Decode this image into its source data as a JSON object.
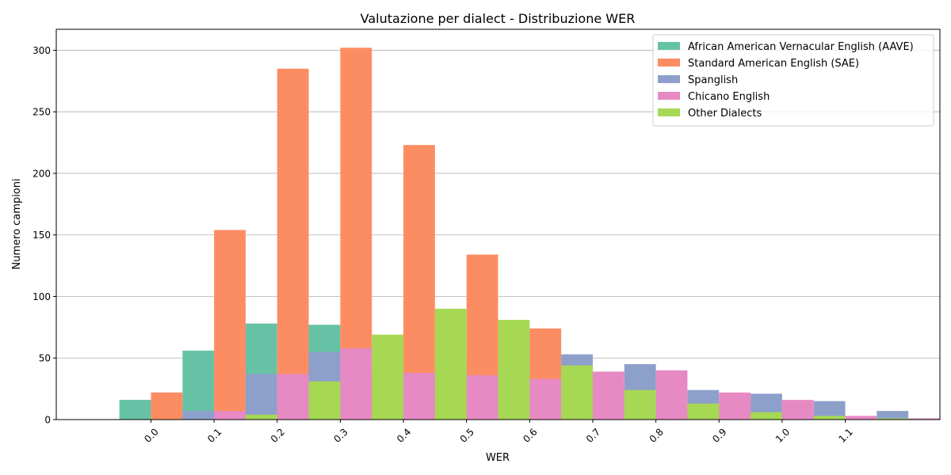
{
  "chart_data": {
    "type": "bar",
    "title": "Valutazione per dialect - Distribuzione WER",
    "xlabel": "WER",
    "ylabel": "Numero campioni",
    "xticks": [
      "0.0",
      "0.1",
      "0.2",
      "0.3",
      "0.4",
      "0.5",
      "0.6",
      "0.7",
      "0.8",
      "0.9",
      "1.0",
      "1.1"
    ],
    "xlim": [
      -0.15,
      1.25
    ],
    "ylim": [
      0,
      317
    ],
    "yticks": [
      0,
      50,
      100,
      150,
      200,
      250,
      300
    ],
    "grid": "y",
    "legend_position": "top-right",
    "bin_starts": [
      -0.05,
      0.05,
      0.15,
      0.25,
      0.35,
      0.45,
      0.55,
      0.65,
      0.75,
      0.85,
      0.95,
      1.05
    ],
    "series": [
      {
        "name": "African American Vernacular English (AAVE)",
        "color": "#66c2a5",
        "values": [
          16,
          56,
          78,
          77,
          42,
          19,
          16,
          13,
          10,
          5,
          4,
          1
        ]
      },
      {
        "name": "Standard American English (SAE)",
        "color": "#fc8d62",
        "values": [
          22,
          154,
          285,
          302,
          223,
          134,
          74,
          25,
          8,
          12,
          6,
          1
        ]
      },
      {
        "name": "Spanglish",
        "color": "#8da0cb",
        "values": [
          7,
          37,
          55,
          37,
          44,
          46,
          53,
          45,
          24,
          21,
          15,
          7
        ]
      },
      {
        "name": "Chicano English",
        "color": "#e78ac3",
        "values": [
          7,
          37,
          58,
          38,
          36,
          33,
          39,
          40,
          22,
          16,
          3,
          1
        ]
      },
      {
        "name": "Other Dialects",
        "color": "#a6d854",
        "values": [
          4,
          31,
          69,
          90,
          81,
          44,
          24,
          13,
          6,
          3,
          1,
          0
        ]
      }
    ]
  }
}
